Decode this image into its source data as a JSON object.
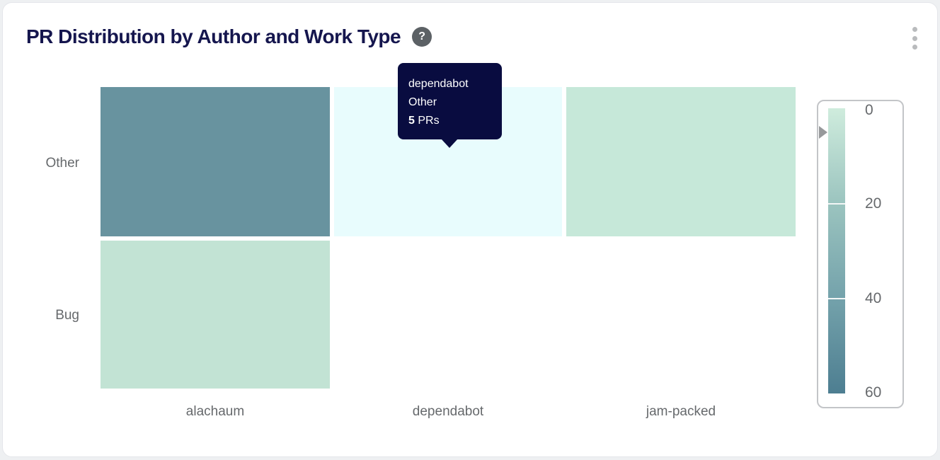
{
  "header": {
    "title": "PR Distribution by Author and Work Type",
    "help_label": "?"
  },
  "chart_data": {
    "type": "heatmap",
    "title": "PR Distribution by Author and Work Type",
    "x_categories": [
      "alachaum",
      "dependabot",
      "jam-packed"
    ],
    "y_categories": [
      "Other",
      "Bug"
    ],
    "value_unit": "PRs",
    "cells": [
      {
        "x": "alachaum",
        "y": "Other",
        "value": 47,
        "approx": true,
        "color": "#68939f"
      },
      {
        "x": "dependabot",
        "y": "Other",
        "value": 5,
        "approx": false,
        "color": "#e8fcfd",
        "hovered": true
      },
      {
        "x": "jam-packed",
        "y": "Other",
        "value": 4,
        "approx": true,
        "color": "#c6e8d9"
      },
      {
        "x": "alachaum",
        "y": "Bug",
        "value": 6,
        "approx": true,
        "color": "#c2e3d4"
      },
      {
        "x": "dependabot",
        "y": "Bug",
        "value": null,
        "color": null
      },
      {
        "x": "jam-packed",
        "y": "Bug",
        "value": null,
        "color": null
      }
    ],
    "colorbar": {
      "min": 0,
      "max": 60,
      "ticks": [
        "0",
        "20",
        "40",
        "60"
      ],
      "gradient_stops": [
        "#cfecdd",
        "#9bc4bf",
        "#74a2ab",
        "#4d7e91"
      ],
      "pointer_value": 5
    }
  },
  "tooltip": {
    "author": "dependabot",
    "work_type": "Other",
    "count": "5",
    "count_suffix": " PRs"
  },
  "colors": {
    "title_text": "#15164e",
    "tooltip_bg": "#090c40",
    "axis_label_text": "#66696c"
  }
}
